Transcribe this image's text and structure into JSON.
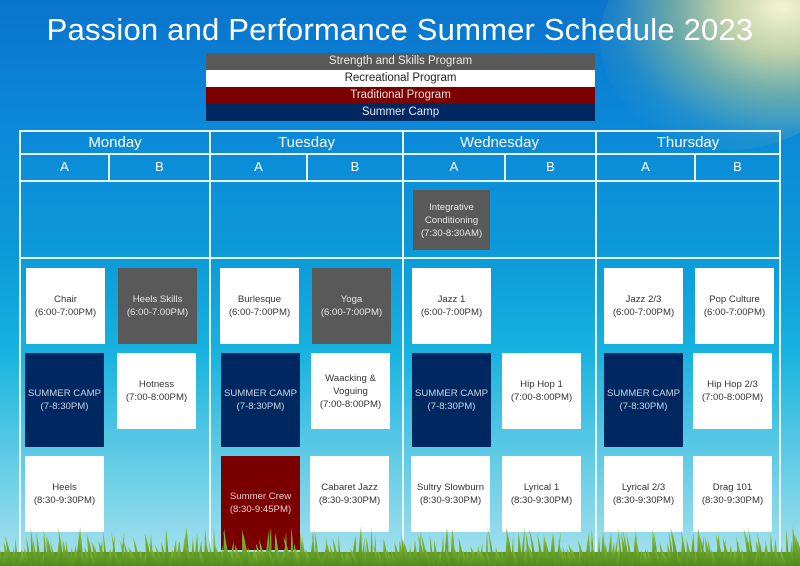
{
  "title": "Passion and Performance Summer Schedule 2023",
  "colors": {
    "strength": "#595959",
    "recreational": "#ffffff",
    "traditional": "#7a0000",
    "camp": "#002860",
    "grid_line": "#e8f4fb"
  },
  "legend": [
    {
      "label": "Strength and Skills Program",
      "type": "strength"
    },
    {
      "label": "Recreational Program",
      "type": "recreational"
    },
    {
      "label": "Traditional Program",
      "type": "traditional"
    },
    {
      "label": "Summer Camp",
      "type": "camp"
    }
  ],
  "days": [
    {
      "name": "Monday",
      "sub": [
        "A",
        "B"
      ]
    },
    {
      "name": "Tuesday",
      "sub": [
        "A",
        "B"
      ]
    },
    {
      "name": "Wednesday",
      "sub": [
        "A",
        "B"
      ]
    },
    {
      "name": "Thursday",
      "sub": [
        "A",
        "B"
      ]
    }
  ],
  "classes": [
    {
      "day": "Wednesday",
      "col": "A",
      "name": "Integrative Conditioning",
      "time": "(7:30-8:30AM)",
      "type": "strength"
    },
    {
      "day": "Monday",
      "col": "A",
      "name": "Chair",
      "time": "(6:00-7:00PM)",
      "type": "recreational"
    },
    {
      "day": "Monday",
      "col": "B",
      "name": "Heels Skills",
      "time": "(6:00-7:00PM)",
      "type": "strength"
    },
    {
      "day": "Monday",
      "col": "A",
      "name": "SUMMER CAMP",
      "time": "(7-8:30PM)",
      "type": "camp"
    },
    {
      "day": "Monday",
      "col": "B",
      "name": "Hotness",
      "time": "(7:00-8:00PM)",
      "type": "recreational"
    },
    {
      "day": "Monday",
      "col": "A",
      "name": "Heels",
      "time": "(8:30-9:30PM)",
      "type": "recreational"
    },
    {
      "day": "Tuesday",
      "col": "A",
      "name": "Burlesque",
      "time": "(6:00-7:00PM)",
      "type": "recreational"
    },
    {
      "day": "Tuesday",
      "col": "B",
      "name": "Yoga",
      "time": "(6:00-7:00PM)",
      "type": "strength"
    },
    {
      "day": "Tuesday",
      "col": "A",
      "name": "SUMMER CAMP",
      "time": "(7-8:30PM)",
      "type": "camp"
    },
    {
      "day": "Tuesday",
      "col": "B",
      "name": "Waacking & Voguing",
      "time": "(7:00-8:00PM)",
      "type": "recreational"
    },
    {
      "day": "Tuesday",
      "col": "A",
      "name": "Summer Crew",
      "time": "(8:30-9:45PM)",
      "type": "traditional"
    },
    {
      "day": "Tuesday",
      "col": "B",
      "name": "Cabaret Jazz",
      "time": "(8:30-9:30PM)",
      "type": "recreational"
    },
    {
      "day": "Wednesday",
      "col": "A",
      "name": "Jazz 1",
      "time": "(6:00-7:00PM)",
      "type": "recreational"
    },
    {
      "day": "Wednesday",
      "col": "A",
      "name": "SUMMER CAMP",
      "time": "(7-8:30PM)",
      "type": "camp"
    },
    {
      "day": "Wednesday",
      "col": "B",
      "name": "Hip Hop 1",
      "time": "(7:00-8:00PM)",
      "type": "recreational"
    },
    {
      "day": "Wednesday",
      "col": "A",
      "name": "Sultry Slowburn",
      "time": "(8:30-9:30PM)",
      "type": "recreational"
    },
    {
      "day": "Wednesday",
      "col": "B",
      "name": "Lyrical 1",
      "time": "(8:30-9:30PM)",
      "type": "recreational"
    },
    {
      "day": "Thursday",
      "col": "A",
      "name": "Jazz 2/3",
      "time": "(6:00-7:00PM)",
      "type": "recreational"
    },
    {
      "day": "Thursday",
      "col": "B",
      "name": "Pop Culture",
      "time": "(6:00-7:00PM)",
      "type": "recreational"
    },
    {
      "day": "Thursday",
      "col": "A",
      "name": "SUMMER CAMP",
      "time": "(7-8:30PM)",
      "type": "camp"
    },
    {
      "day": "Thursday",
      "col": "B",
      "name": "Hip Hop 2/3",
      "time": "(7:00-8:00PM)",
      "type": "recreational"
    },
    {
      "day": "Thursday",
      "col": "A",
      "name": "Lyrical 2/3",
      "time": "(8:30-9:30PM)",
      "type": "recreational"
    },
    {
      "day": "Thursday",
      "col": "B",
      "name": "Drag 101",
      "time": "(8:30-9:30PM)",
      "type": "recreational"
    }
  ]
}
